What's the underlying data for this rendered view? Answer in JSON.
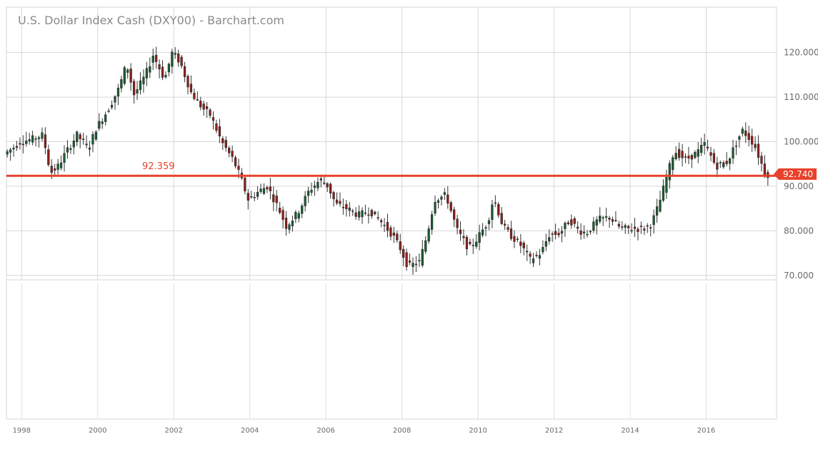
{
  "chart_data": {
    "type": "candlestick",
    "title": "U.S. Dollar Index Cash (DXY00) - Barchart.com",
    "period": "monthly",
    "x_range": [
      1997.6,
      2017.85
    ],
    "ylim": [
      69,
      130.2
    ],
    "y_ticks": [
      70,
      80,
      90,
      100,
      110,
      120
    ],
    "y_tick_labels": [
      "70.000",
      "80.000",
      "90.000",
      "100.000",
      "110.000",
      "120.000"
    ],
    "x_ticks": [
      1998,
      2000,
      2002,
      2004,
      2006,
      2008,
      2010,
      2012,
      2014,
      2016
    ],
    "x_tick_labels": [
      "1998",
      "2000",
      "2002",
      "2004",
      "2006",
      "2008",
      "2010",
      "2012",
      "2014",
      "2016"
    ],
    "grid": true,
    "reference_line": {
      "value": 92.359,
      "label": "92.359",
      "color": "#e8412c"
    },
    "last_price": {
      "value": 92.74,
      "label": "92.740",
      "color": "#e8412c"
    },
    "up_color": "#1d5c34",
    "down_color": "#8c1f1b",
    "anchors": [
      [
        1997.58,
        97.2
      ],
      [
        1997.8,
        98.5
      ],
      [
        1998.0,
        100.0
      ],
      [
        1998.3,
        100.5
      ],
      [
        1998.6,
        101.5
      ],
      [
        1998.8,
        93.0
      ],
      [
        1999.0,
        94.5
      ],
      [
        1999.2,
        97.5
      ],
      [
        1999.5,
        101.5
      ],
      [
        1999.8,
        98.5
      ],
      [
        2000.0,
        103.0
      ],
      [
        2000.3,
        107.0
      ],
      [
        2000.6,
        112.0
      ],
      [
        2000.8,
        117.5
      ],
      [
        2001.0,
        110.5
      ],
      [
        2001.3,
        115.0
      ],
      [
        2001.5,
        119.5
      ],
      [
        2001.8,
        114.0
      ],
      [
        2002.0,
        120.0
      ],
      [
        2002.2,
        118.0
      ],
      [
        2002.5,
        111.0
      ],
      [
        2002.8,
        107.5
      ],
      [
        2003.0,
        106.0
      ],
      [
        2003.3,
        100.0
      ],
      [
        2003.6,
        96.0
      ],
      [
        2003.8,
        92.0
      ],
      [
        2004.0,
        87.0
      ],
      [
        2004.3,
        89.0
      ],
      [
        2004.5,
        90.0
      ],
      [
        2004.8,
        85.0
      ],
      [
        2005.0,
        81.0
      ],
      [
        2005.3,
        84.0
      ],
      [
        2005.6,
        89.0
      ],
      [
        2005.9,
        91.5
      ],
      [
        2006.1,
        90.0
      ],
      [
        2006.3,
        86.0
      ],
      [
        2006.6,
        85.0
      ],
      [
        2006.9,
        83.5
      ],
      [
        2007.2,
        84.5
      ],
      [
        2007.5,
        82.0
      ],
      [
        2007.8,
        79.0
      ],
      [
        2008.0,
        76.0
      ],
      [
        2008.2,
        72.0
      ],
      [
        2008.5,
        73.0
      ],
      [
        2008.7,
        79.0
      ],
      [
        2008.9,
        87.0
      ],
      [
        2009.2,
        88.0
      ],
      [
        2009.5,
        80.0
      ],
      [
        2009.8,
        76.0
      ],
      [
        2010.0,
        78.0
      ],
      [
        2010.3,
        82.0
      ],
      [
        2010.45,
        87.5
      ],
      [
        2010.7,
        81.0
      ],
      [
        2010.9,
        79.0
      ],
      [
        2011.2,
        76.5
      ],
      [
        2011.4,
        73.5
      ],
      [
        2011.7,
        75.0
      ],
      [
        2011.9,
        79.0
      ],
      [
        2012.2,
        79.5
      ],
      [
        2012.45,
        82.5
      ],
      [
        2012.7,
        80.0
      ],
      [
        2012.9,
        79.5
      ],
      [
        2013.2,
        82.5
      ],
      [
        2013.5,
        83.0
      ],
      [
        2013.8,
        80.5
      ],
      [
        2014.0,
        80.5
      ],
      [
        2014.4,
        80.5
      ],
      [
        2014.6,
        81.5
      ],
      [
        2014.8,
        86.0
      ],
      [
        2015.0,
        92.0
      ],
      [
        2015.2,
        98.0
      ],
      [
        2015.5,
        96.0
      ],
      [
        2015.8,
        97.5
      ],
      [
        2016.0,
        99.5
      ],
      [
        2016.3,
        94.5
      ],
      [
        2016.6,
        95.5
      ],
      [
        2016.9,
        101.0
      ],
      [
        2017.0,
        102.5
      ],
      [
        2017.3,
        99.5
      ],
      [
        2017.6,
        92.7
      ]
    ]
  }
}
